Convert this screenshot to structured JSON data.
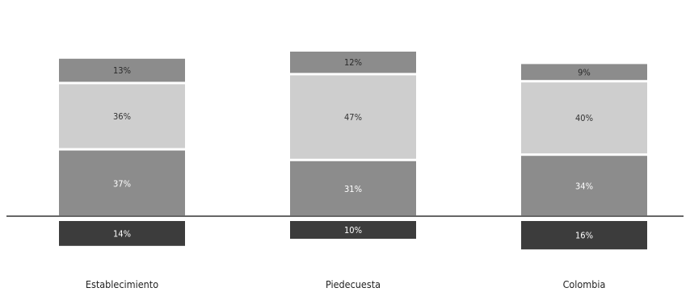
{
  "chart_data": {
    "type": "bar",
    "stacked": true,
    "diverging": true,
    "categories": [
      "Establecimiento",
      "Piedecuesta",
      "Colombia"
    ],
    "series": [
      {
        "values": [
          14,
          10,
          16
        ],
        "labels": [
          "14%",
          "10%",
          "16%"
        ],
        "color": "#3c3c3c",
        "label_color": "#ffffff",
        "side": "below"
      },
      {
        "values": [
          37,
          31,
          34
        ],
        "labels": [
          "37%",
          "31%",
          "34%"
        ],
        "color": "#8c8c8c",
        "label_color": "#ffffff",
        "side": "above"
      },
      {
        "values": [
          36,
          47,
          40
        ],
        "labels": [
          "36%",
          "47%",
          "40%"
        ],
        "color": "#cecece",
        "label_color": "#333333",
        "side": "above"
      },
      {
        "values": [
          13,
          12,
          9
        ],
        "labels": [
          "13%",
          "12%",
          "9%"
        ],
        "color": "#8c8c8c",
        "label_color": "#2a2a2a",
        "side": "above"
      }
    ],
    "baseline_color": "#666666",
    "legend": "none",
    "grid": false
  }
}
